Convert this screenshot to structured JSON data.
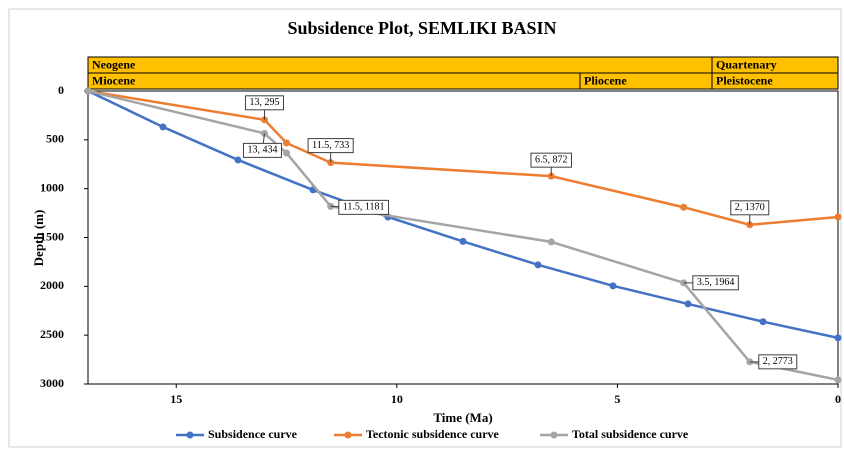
{
  "chart_data": {
    "type": "line",
    "title": "Subsidence Plot, SEMLIKI BASIN",
    "x_label": "Time (Ma)",
    "y_label": "Depth (m)",
    "xlim": [
      17,
      0
    ],
    "xticks": [
      15,
      10,
      5,
      0
    ],
    "ylim": [
      0,
      3000
    ],
    "yticks": [
      0,
      500,
      1000,
      1500,
      2000,
      2500,
      3000
    ],
    "y_reversed": true,
    "eras": [
      "Neogene",
      "Quartenary"
    ],
    "epochs": [
      "Miocene",
      "Pliocene",
      "Pleistocene"
    ],
    "series": [
      {
        "name": "Subsidence curve",
        "color": "#4472c4",
        "x": [
          17,
          15.3,
          13.6,
          11.9,
          10.2,
          8.5,
          6.8,
          5.1,
          3.4,
          1.7,
          0
        ],
        "values": [
          0,
          368,
          706,
          1013,
          1290,
          1540,
          1780,
          1995,
          2180,
          2362,
          2528
        ]
      },
      {
        "name": "Tectonic subsidence curve",
        "color": "#ed7d31",
        "x": [
          17,
          13,
          12.5,
          11.5,
          6.5,
          3.5,
          2,
          0
        ],
        "values": [
          0,
          295,
          532,
          733,
          872,
          1190,
          1370,
          1290
        ],
        "value_labels": [
          null,
          "13, 295",
          null,
          "11.5, 733",
          "6.5, 872",
          null,
          "2, 1370",
          null
        ]
      },
      {
        "name": "Total subsidence curve",
        "color": "#a5a5a5",
        "x": [
          17,
          13,
          12.5,
          11.5,
          6.5,
          3.5,
          2,
          0
        ],
        "values": [
          0,
          434,
          635,
          1181,
          1545,
          1964,
          2773,
          2958
        ],
        "value_labels": [
          null,
          "13, 434",
          null,
          "11.5, 1181",
          null,
          "3.5, 1964",
          "2, 2773",
          null
        ]
      }
    ]
  }
}
